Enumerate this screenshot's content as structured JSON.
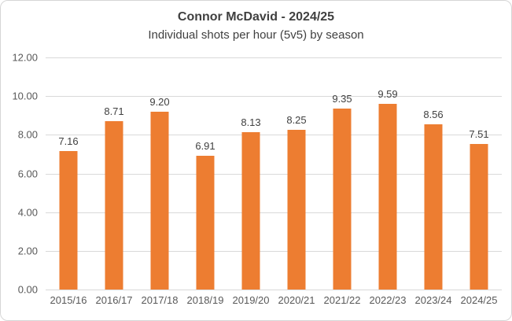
{
  "chart_data": {
    "type": "bar",
    "title": "Connor McDavid - 2024/25",
    "subtitle": "Individual shots per hour (5v5) by season",
    "categories": [
      "2015/16",
      "2016/17",
      "2017/18",
      "2018/19",
      "2019/20",
      "2020/21",
      "2021/22",
      "2022/23",
      "2023/24",
      "2024/25"
    ],
    "values": [
      7.16,
      8.71,
      9.2,
      6.91,
      8.13,
      8.25,
      9.35,
      9.59,
      8.56,
      7.51
    ],
    "value_labels": [
      "7.16",
      "8.71",
      "9.20",
      "6.91",
      "8.13",
      "8.25",
      "9.35",
      "9.59",
      "8.56",
      "7.51"
    ],
    "ylim": [
      0,
      12
    ],
    "ytick_step": 2,
    "ytick_labels": [
      "12.00",
      "10.00",
      "8.00",
      "6.00",
      "4.00",
      "2.00",
      "0.00"
    ],
    "grid": true,
    "legend_position": "none",
    "xlabel": "",
    "ylabel": "",
    "colors": {
      "bar": "#ED7D31",
      "gridline": "#D9D9D9",
      "axis_label": "#595959",
      "value_label": "#404040",
      "title": "#404040",
      "frame_border": "#D6D6D6",
      "background": "#FFFFFF"
    }
  }
}
